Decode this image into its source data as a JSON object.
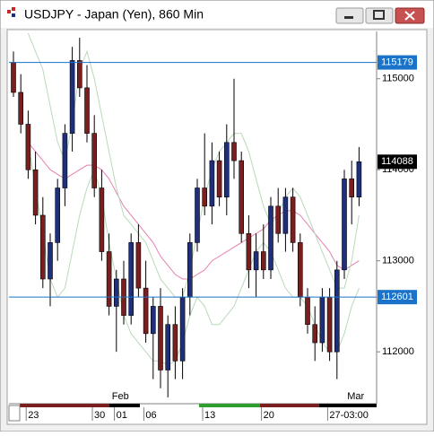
{
  "window": {
    "title": "USDJPY - Japan (Yen), 860 Min"
  },
  "chart_data": {
    "type": "candlestick",
    "up_color": "#1f2f7a",
    "down_color": "#7a1f1f",
    "open": [
      115180,
      114850,
      114500,
      114000,
      113500,
      112800,
      113200,
      113800,
      114400,
      115200,
      114900,
      114400,
      113800,
      113100,
      112500,
      112800,
      112400,
      113200,
      112700,
      112200,
      112500,
      111800,
      112300,
      111900,
      112600,
      113200,
      113800,
      113600,
      114100,
      113700,
      114300,
      114100,
      113300,
      112900,
      113100,
      112900,
      113600,
      113300,
      113700,
      113200,
      112600,
      112300,
      112100,
      112600,
      112000,
      112900,
      113900,
      113700
    ],
    "high": [
      115300,
      115050,
      114650,
      114200,
      113700,
      113300,
      113900,
      114500,
      115350,
      115450,
      115150,
      114600,
      114000,
      113300,
      112900,
      113000,
      113300,
      113400,
      113000,
      112600,
      112700,
      112400,
      112500,
      112700,
      113300,
      113900,
      114400,
      114300,
      114200,
      114500,
      115000,
      114200,
      113500,
      113300,
      113400,
      113700,
      113800,
      113800,
      113800,
      113300,
      112700,
      112500,
      112700,
      112700,
      113000,
      114000,
      114100,
      114250
    ],
    "low": [
      114800,
      114400,
      113900,
      113400,
      112700,
      112500,
      113000,
      113600,
      114200,
      114800,
      114300,
      113700,
      113000,
      112400,
      112000,
      112300,
      112300,
      112600,
      112100,
      111700,
      111600,
      111500,
      111700,
      111700,
      112400,
      113100,
      113500,
      113400,
      113600,
      113500,
      113900,
      113200,
      112700,
      112600,
      112800,
      112800,
      113200,
      113100,
      113100,
      112500,
      112200,
      111900,
      112000,
      111900,
      111700,
      112800,
      113400,
      113600
    ],
    "close": [
      114850,
      114500,
      114000,
      113500,
      112800,
      113200,
      113800,
      114400,
      115200,
      114900,
      114400,
      113800,
      113100,
      112500,
      112800,
      112400,
      113200,
      112700,
      112200,
      112500,
      111800,
      112300,
      111900,
      112600,
      113200,
      113800,
      113600,
      114100,
      113700,
      114300,
      114100,
      113300,
      112900,
      113100,
      112900,
      113600,
      113300,
      113700,
      113200,
      112600,
      112300,
      112100,
      112600,
      112000,
      112900,
      113900,
      113700,
      114088
    ],
    "overlays": [
      {
        "color": "#e77fb0",
        "values": [
          null,
          null,
          114300,
          114200,
          114100,
          114000,
          113950,
          113900,
          113950,
          114000,
          114050,
          114050,
          114000,
          113900,
          113750,
          113600,
          113500,
          113400,
          113300,
          113200,
          113050,
          112950,
          112850,
          112800,
          112800,
          112850,
          112900,
          113000,
          113050,
          113100,
          113150,
          113200,
          113250,
          113300,
          113350,
          113450,
          113500,
          113550,
          113550,
          113500,
          113400,
          113300,
          113200,
          113100,
          112950,
          112900,
          112950,
          113000
        ]
      },
      {
        "color": "#b9d9b9",
        "values": [
          null,
          null,
          115500,
          115300,
          115100,
          114700,
          114300,
          114100,
          114500,
          115100,
          115300,
          115000,
          114600,
          114200,
          113800,
          113500,
          113400,
          113300,
          113200,
          113000,
          112800,
          112700,
          112600,
          112600,
          112900,
          113300,
          113700,
          114000,
          114200,
          114300,
          114400,
          114400,
          114200,
          113900,
          113600,
          113400,
          113500,
          113700,
          113800,
          113700,
          113500,
          113300,
          113100,
          112900,
          112700,
          112700,
          113000,
          113500
        ]
      },
      {
        "color": "#b9d9b9",
        "values": [
          null,
          null,
          114300,
          113800,
          113300,
          112800,
          112600,
          112700,
          113100,
          113500,
          113800,
          114000,
          113700,
          113200,
          112800,
          112400,
          112200,
          112100,
          112000,
          111900,
          111900,
          111850,
          111900,
          112100,
          112400,
          112600,
          112500,
          112300,
          112300,
          112400,
          112500,
          112700,
          112900,
          113100,
          113200,
          113100,
          112900,
          112700,
          112600,
          112600,
          112500,
          112300,
          112100,
          112000,
          112000,
          112200,
          112500,
          112700
        ]
      }
    ],
    "ylim": [
      111430,
      115520
    ],
    "yticks": [
      112000,
      113000,
      114000,
      115000
    ],
    "hlines": [
      115179,
      112601
    ],
    "hline_color": "#1a73c8",
    "last_price": 114088,
    "x_labels": [
      {
        "label": "23",
        "at": 1
      },
      {
        "label": "30",
        "at": 10
      },
      {
        "label": "01",
        "at": 13
      },
      {
        "label": "06",
        "at": 17
      },
      {
        "label": "13",
        "at": 25
      },
      {
        "label": "20",
        "at": 33
      },
      {
        "label": "27-03:00",
        "at": 42
      }
    ],
    "month_labels": [
      {
        "label": "Feb",
        "at": 14
      },
      {
        "label": "Mar",
        "at": 46
      }
    ]
  }
}
